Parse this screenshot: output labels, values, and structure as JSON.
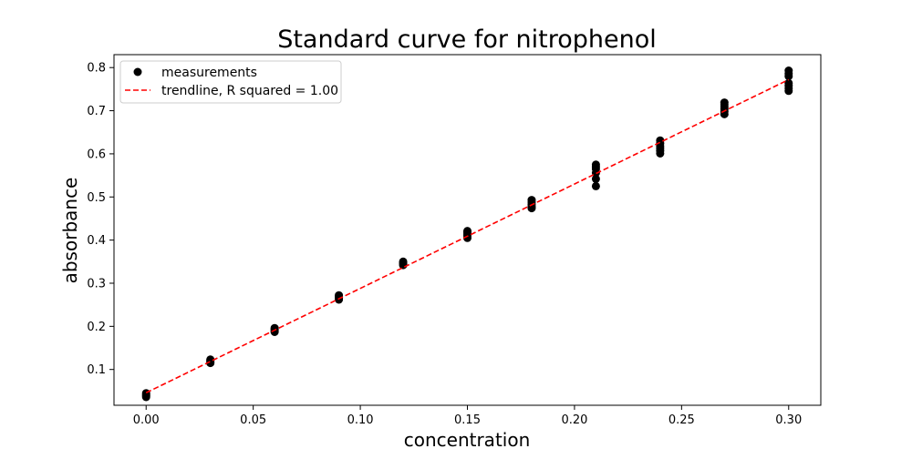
{
  "chart_data": {
    "type": "scatter",
    "title": "Standard curve for nitrophenol",
    "xlabel": "concentration",
    "ylabel": "absorbance",
    "xlim": [
      -0.015,
      0.315
    ],
    "ylim": [
      0.017,
      0.83
    ],
    "grid": false,
    "legend_position": "upper-left",
    "x_ticks": [
      {
        "value": 0.0,
        "label": "0.00"
      },
      {
        "value": 0.05,
        "label": "0.05"
      },
      {
        "value": 0.1,
        "label": "0.10"
      },
      {
        "value": 0.15,
        "label": "0.15"
      },
      {
        "value": 0.2,
        "label": "0.20"
      },
      {
        "value": 0.25,
        "label": "0.25"
      },
      {
        "value": 0.3,
        "label": "0.30"
      }
    ],
    "y_ticks": [
      {
        "value": 0.1,
        "label": "0.1"
      },
      {
        "value": 0.2,
        "label": "0.2"
      },
      {
        "value": 0.3,
        "label": "0.3"
      },
      {
        "value": 0.4,
        "label": "0.4"
      },
      {
        "value": 0.5,
        "label": "0.5"
      },
      {
        "value": 0.6,
        "label": "0.6"
      },
      {
        "value": 0.7,
        "label": "0.7"
      },
      {
        "value": 0.8,
        "label": "0.8"
      }
    ],
    "series": [
      {
        "name": "measurements",
        "kind": "scatter",
        "color": "#000000",
        "points": [
          {
            "x": 0.0,
            "y": 0.036
          },
          {
            "x": 0.0,
            "y": 0.039
          },
          {
            "x": 0.0,
            "y": 0.042
          },
          {
            "x": 0.0,
            "y": 0.045
          },
          {
            "x": 0.03,
            "y": 0.115
          },
          {
            "x": 0.03,
            "y": 0.118
          },
          {
            "x": 0.03,
            "y": 0.121
          },
          {
            "x": 0.03,
            "y": 0.123
          },
          {
            "x": 0.06,
            "y": 0.187
          },
          {
            "x": 0.06,
            "y": 0.19
          },
          {
            "x": 0.06,
            "y": 0.193
          },
          {
            "x": 0.06,
            "y": 0.196
          },
          {
            "x": 0.09,
            "y": 0.262
          },
          {
            "x": 0.09,
            "y": 0.266
          },
          {
            "x": 0.09,
            "y": 0.27
          },
          {
            "x": 0.09,
            "y": 0.272
          },
          {
            "x": 0.12,
            "y": 0.342
          },
          {
            "x": 0.12,
            "y": 0.345
          },
          {
            "x": 0.12,
            "y": 0.348
          },
          {
            "x": 0.12,
            "y": 0.35
          },
          {
            "x": 0.15,
            "y": 0.405
          },
          {
            "x": 0.15,
            "y": 0.41
          },
          {
            "x": 0.15,
            "y": 0.414
          },
          {
            "x": 0.15,
            "y": 0.418
          },
          {
            "x": 0.15,
            "y": 0.421
          },
          {
            "x": 0.18,
            "y": 0.474
          },
          {
            "x": 0.18,
            "y": 0.478
          },
          {
            "x": 0.18,
            "y": 0.483
          },
          {
            "x": 0.18,
            "y": 0.488
          },
          {
            "x": 0.18,
            "y": 0.493
          },
          {
            "x": 0.21,
            "y": 0.525
          },
          {
            "x": 0.21,
            "y": 0.542
          },
          {
            "x": 0.21,
            "y": 0.556
          },
          {
            "x": 0.21,
            "y": 0.565
          },
          {
            "x": 0.21,
            "y": 0.57
          },
          {
            "x": 0.21,
            "y": 0.575
          },
          {
            "x": 0.24,
            "y": 0.601
          },
          {
            "x": 0.24,
            "y": 0.607
          },
          {
            "x": 0.24,
            "y": 0.613
          },
          {
            "x": 0.24,
            "y": 0.618
          },
          {
            "x": 0.24,
            "y": 0.624
          },
          {
            "x": 0.24,
            "y": 0.631
          },
          {
            "x": 0.27,
            "y": 0.692
          },
          {
            "x": 0.27,
            "y": 0.698
          },
          {
            "x": 0.27,
            "y": 0.704
          },
          {
            "x": 0.27,
            "y": 0.709
          },
          {
            "x": 0.27,
            "y": 0.714
          },
          {
            "x": 0.27,
            "y": 0.719
          },
          {
            "x": 0.3,
            "y": 0.746
          },
          {
            "x": 0.3,
            "y": 0.752
          },
          {
            "x": 0.3,
            "y": 0.758
          },
          {
            "x": 0.3,
            "y": 0.764
          },
          {
            "x": 0.3,
            "y": 0.78
          },
          {
            "x": 0.3,
            "y": 0.786
          },
          {
            "x": 0.3,
            "y": 0.793
          }
        ]
      },
      {
        "name": "trendline, R squared = 1.00",
        "kind": "line",
        "style": "dashed",
        "color": "#ff0000",
        "x": [
          0.0,
          0.3
        ],
        "y": [
          0.046,
          0.772
        ]
      }
    ]
  }
}
